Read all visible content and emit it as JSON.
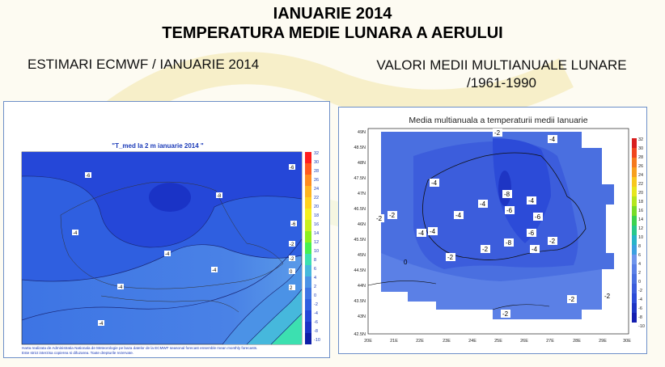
{
  "page": {
    "title_line1": "IANUARIE 2014",
    "title_line2": "TEMPERATURA MEDIE LUNARA A AERULUI",
    "subtitle_left": "ESTIMARI ECMWF / IANUARIE 2014",
    "subtitle_right_line1": "VALORI MEDII MULTIANUALE LUNARE",
    "subtitle_right_line2": "/1961-1990"
  },
  "left_map": {
    "title": "\"T_med la 2 m ianuarie 2014 \"",
    "footer_line1": "Harta realizata de Administratia Nationala de Meteorologie pe baza datelor de la ECMWF seasonal forecast ensemble mean monthly forecasts.",
    "footer_line2": "Este strict interzisa copierea si difuzarea. Toate drepturile rezervate.",
    "colorbar_labels": [
      "32",
      "30",
      "28",
      "26",
      "24",
      "22",
      "20",
      "18",
      "16",
      "14",
      "12",
      "10",
      "8",
      "6",
      "4",
      "2",
      "0",
      "-2",
      "-4",
      "-6",
      "-8",
      "-10"
    ],
    "contour_labels": [
      "-6",
      "-8",
      "-6",
      "-6",
      "-4",
      "-4",
      "-2",
      "-4",
      "-4",
      "-2",
      "0",
      "2",
      "-4"
    ],
    "colors": {
      "cold": "#1f3fd6",
      "mid": "#3d74e4",
      "warm": "#3ce0b0"
    }
  },
  "right_map": {
    "title": "Media multianuala a temperaturii medii Ianuarie",
    "lat_labels": [
      "49N",
      "48.5N",
      "48N",
      "47.5N",
      "47N",
      "46.5N",
      "46N",
      "45.5N",
      "45N",
      "44.5N",
      "44N",
      "43.5N",
      "43N",
      "42.5N"
    ],
    "lon_labels": [
      "20E",
      "21E",
      "22E",
      "23E",
      "24E",
      "25E",
      "26E",
      "27E",
      "28E",
      "29E",
      "30E"
    ],
    "value_labels": [
      "-2",
      "-4",
      "-4",
      "-4",
      "-4",
      "-8",
      "-6",
      "-6",
      "-4",
      "-2",
      "-2",
      "-4",
      "0",
      "-2",
      "-8",
      "-6",
      "-4",
      "-2",
      "-2",
      "-2",
      "-2",
      "-2",
      "-4"
    ],
    "colorbar_labels": [
      "32",
      "30",
      "28",
      "26",
      "24",
      "22",
      "20",
      "18",
      "16",
      "14",
      "12",
      "10",
      "8",
      "6",
      "4",
      "2",
      "0",
      "-2",
      "-4",
      "-6",
      "-8",
      "-10"
    ],
    "colors": {
      "cold": "#2c4bd8",
      "mid": "#4a6fe0",
      "warm": "#6f95ec"
    }
  }
}
